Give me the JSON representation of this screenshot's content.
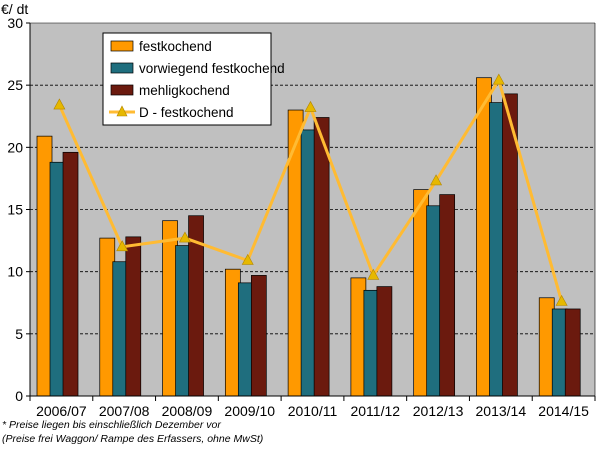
{
  "chart_data": {
    "type": "bar",
    "ylabel": "€/ dt",
    "ylim": [
      0,
      30
    ],
    "yticks": [
      0,
      5,
      10,
      15,
      20,
      25,
      30
    ],
    "grid": "horizontal dashed",
    "legend_position": "top-left",
    "categories": [
      "2006/07",
      "2007/08",
      "2008/09",
      "2009/10",
      "2010/11",
      "2011/12",
      "2012/13",
      "2013/14",
      "2014/15"
    ],
    "series": [
      {
        "name": "festkochend",
        "kind": "bar",
        "color": "#FF9900",
        "values": [
          20.9,
          12.7,
          14.1,
          10.2,
          23.0,
          9.5,
          16.6,
          25.6,
          7.9
        ]
      },
      {
        "name": "vorwiegend festkochend",
        "kind": "bar",
        "color": "#1F6E7E",
        "values": [
          18.8,
          10.8,
          12.1,
          9.1,
          21.4,
          8.5,
          15.3,
          23.6,
          7.0
        ]
      },
      {
        "name": "mehligkochend",
        "kind": "bar",
        "color": "#6B1A0E",
        "values": [
          19.6,
          12.8,
          14.5,
          9.7,
          22.4,
          8.8,
          16.2,
          24.3,
          7.0
        ]
      },
      {
        "name": "D - festkochend",
        "kind": "line",
        "color": "#FFBB33",
        "marker": "triangle",
        "marker_color": "#E6B800",
        "values": [
          23.4,
          12.0,
          12.7,
          10.9,
          23.2,
          9.7,
          17.3,
          25.4,
          7.6
        ]
      }
    ]
  },
  "footnotes": {
    "line1": "* Preise liegen  bis einschließlich Dezember vor",
    "line2": "(Preise frei Waggon/ Rampe des Erfassers, ohne MwSt)"
  },
  "colors": {
    "plot_background": "#C0C0C0",
    "axis": "#000000",
    "gridline": "#000000"
  }
}
